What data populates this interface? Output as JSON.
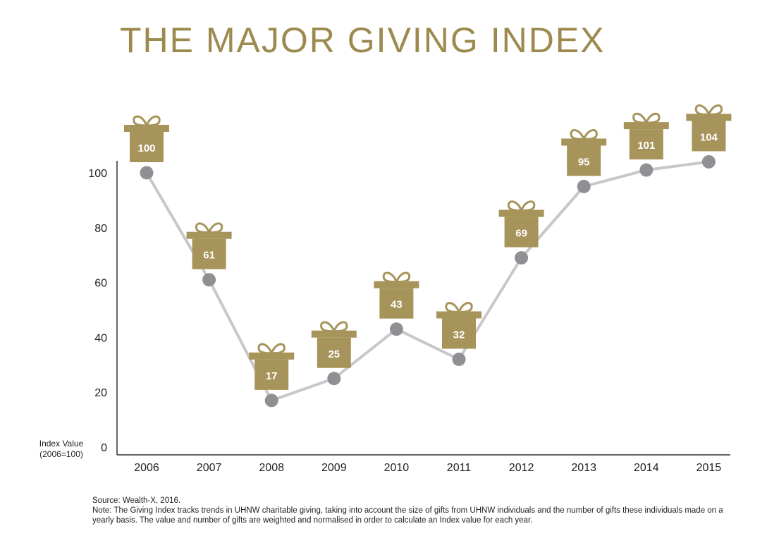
{
  "title": "THE MAJOR GIVING INDEX",
  "colors": {
    "gold": "#a7945a",
    "line": "#c8c8c8",
    "marker": "#8f9093",
    "axis": "#333333"
  },
  "icon": "gift-box-icon",
  "chart_data": {
    "type": "line",
    "categories": [
      "2006",
      "2007",
      "2008",
      "2009",
      "2010",
      "2011",
      "2012",
      "2013",
      "2014",
      "2015"
    ],
    "series": [
      {
        "values": [
          100,
          61,
          17,
          25,
          43,
          32,
          69,
          95,
          101,
          104
        ]
      }
    ],
    "data_labels": [
      "100",
      "61",
      "17",
      "25",
      "43",
      "32",
      "69",
      "95",
      "101",
      "104"
    ],
    "y_ticks": [
      0,
      20,
      40,
      60,
      80,
      100
    ],
    "ylim": [
      0,
      100
    ],
    "ylabel": [
      "Index Value",
      "(2006=100)"
    ],
    "xlabel": "",
    "grid": false
  },
  "footer": {
    "source": "Source: Wealth-X, 2016.",
    "note": "Note: The Giving Index tracks trends in UHNW charitable giving, taking into account the size of gifts from UHNW individuals and the number of gifts these individuals made on a yearly basis. The value and number of gifts are weighted and normalised in order to calculate an Index value for each year."
  }
}
